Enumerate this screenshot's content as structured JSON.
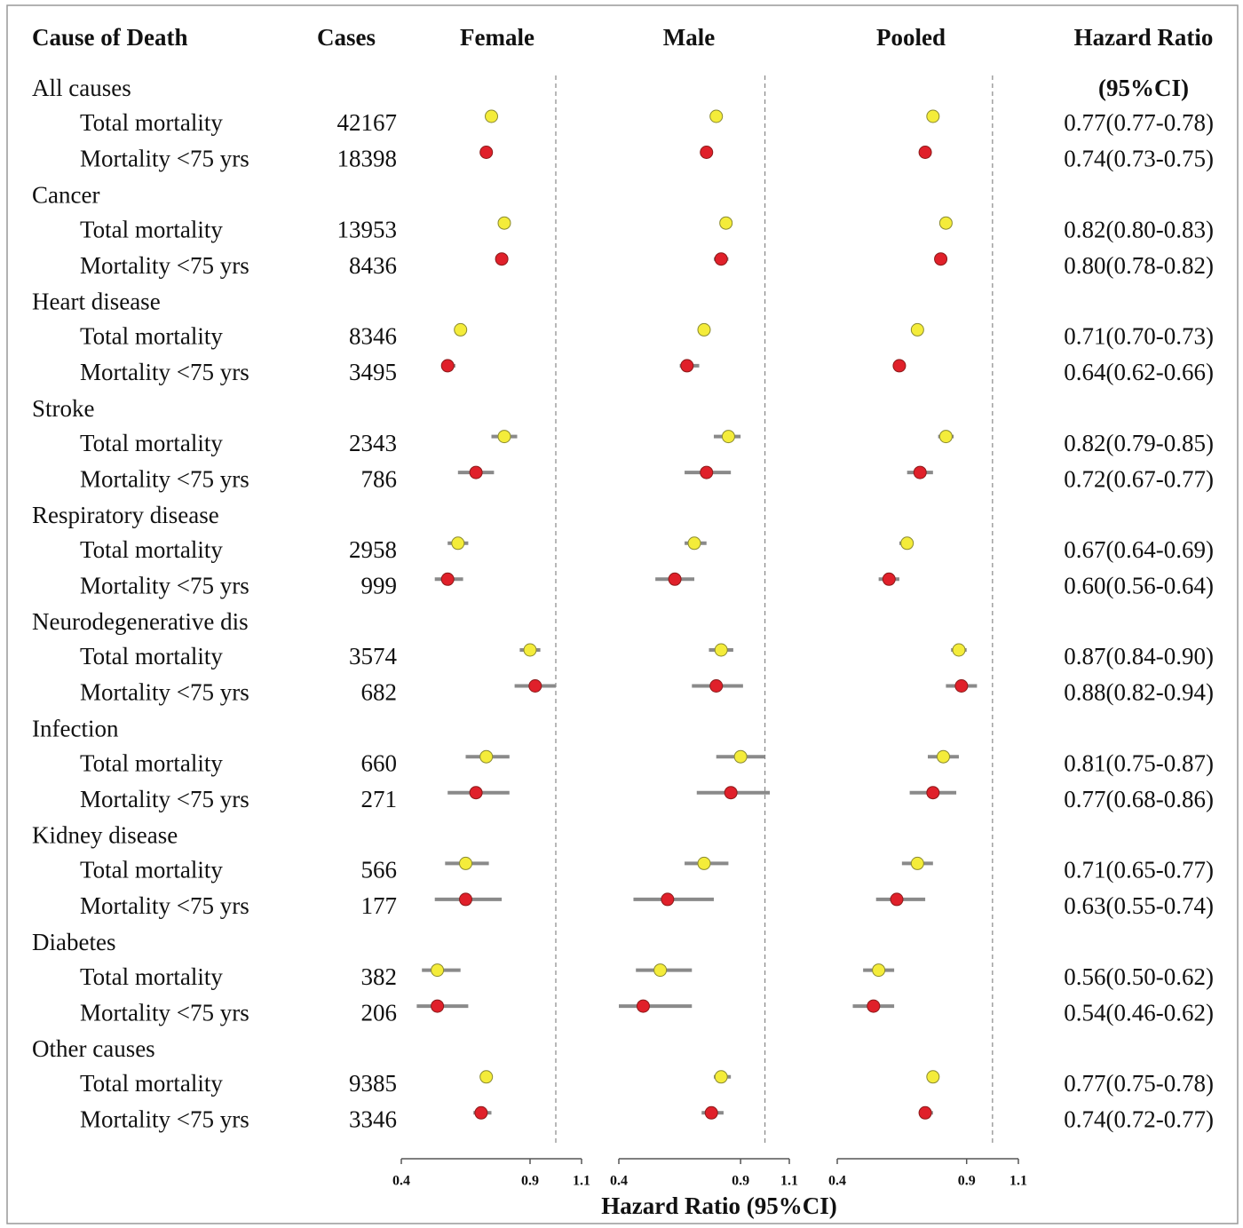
{
  "chart_data": {
    "type": "forest",
    "headers": {
      "cause": "Cause of Death",
      "cases": "Cases",
      "hr": "Hazard Ratio",
      "hr_sub": "(95%CI)"
    },
    "xlabel": "Hazard Ratio (95%CI)",
    "marker_colors": [
      "#f4ec3a",
      "#e0202a"
    ],
    "groups": [
      {
        "name": "All causes",
        "rows": [
          {
            "label": "Total mortality",
            "cases": 42167
          },
          {
            "label": "Mortality <75 yrs",
            "cases": 18398
          }
        ]
      },
      {
        "name": "Cancer",
        "rows": [
          {
            "label": "Total mortality",
            "cases": 13953
          },
          {
            "label": "Mortality <75 yrs",
            "cases": 8436
          }
        ]
      },
      {
        "name": "Heart disease",
        "rows": [
          {
            "label": "Total mortality",
            "cases": 8346
          },
          {
            "label": "Mortality <75 yrs",
            "cases": 3495
          }
        ]
      },
      {
        "name": "Stroke",
        "rows": [
          {
            "label": "Total mortality",
            "cases": 2343
          },
          {
            "label": "Mortality <75 yrs",
            "cases": 786
          }
        ]
      },
      {
        "name": "Respiratory disease",
        "rows": [
          {
            "label": "Total mortality",
            "cases": 2958
          },
          {
            "label": "Mortality <75 yrs",
            "cases": 999
          }
        ]
      },
      {
        "name": "Neurodegenerative dis",
        "rows": [
          {
            "label": "Total mortality",
            "cases": 3574
          },
          {
            "label": "Mortality <75 yrs",
            "cases": 682
          }
        ]
      },
      {
        "name": "Infection",
        "rows": [
          {
            "label": "Total mortality",
            "cases": 660
          },
          {
            "label": "Mortality <75 yrs",
            "cases": 271
          }
        ]
      },
      {
        "name": "Kidney disease",
        "rows": [
          {
            "label": "Total mortality",
            "cases": 566
          },
          {
            "label": "Mortality <75 yrs",
            "cases": 177
          }
        ]
      },
      {
        "name": "Diabetes",
        "rows": [
          {
            "label": "Total mortality",
            "cases": 382
          },
          {
            "label": "Mortality <75 yrs",
            "cases": 206
          }
        ]
      },
      {
        "name": "Other causes",
        "rows": [
          {
            "label": "Total mortality",
            "cases": 9385
          },
          {
            "label": "Mortality <75 yrs",
            "cases": 3346
          }
        ]
      }
    ],
    "panels": [
      {
        "name": "Female",
        "xlim": [
          0.4,
          1.1
        ],
        "xticks": [
          0.4,
          0.9,
          1.1
        ],
        "reference": 1,
        "estimates": [
          0.75,
          0.73,
          0.8,
          0.79,
          0.63,
          0.58,
          0.8,
          0.69,
          0.62,
          0.58,
          0.9,
          0.92,
          0.73,
          0.69,
          0.65,
          0.65,
          0.54,
          0.54,
          0.73,
          0.71
        ],
        "lower": [
          0.74,
          0.72,
          0.79,
          0.78,
          0.62,
          0.56,
          0.75,
          0.62,
          0.58,
          0.53,
          0.86,
          0.84,
          0.65,
          0.58,
          0.57,
          0.53,
          0.48,
          0.46,
          0.72,
          0.68
        ],
        "upper": [
          0.76,
          0.74,
          0.81,
          0.8,
          0.64,
          0.61,
          0.85,
          0.76,
          0.66,
          0.64,
          0.94,
          1.0,
          0.82,
          0.82,
          0.74,
          0.79,
          0.63,
          0.66,
          0.75,
          0.75
        ]
      },
      {
        "name": "Male",
        "xlim": [
          0.4,
          1.1
        ],
        "xticks": [
          0.4,
          0.9,
          1.1
        ],
        "reference": 1,
        "estimates": [
          0.8,
          0.76,
          0.84,
          0.82,
          0.75,
          0.68,
          0.85,
          0.76,
          0.71,
          0.63,
          0.82,
          0.8,
          0.9,
          0.86,
          0.75,
          0.6,
          0.57,
          0.5,
          0.82,
          0.78
        ],
        "lower": [
          0.79,
          0.75,
          0.83,
          0.79,
          0.74,
          0.65,
          0.79,
          0.67,
          0.67,
          0.55,
          0.77,
          0.7,
          0.8,
          0.72,
          0.67,
          0.46,
          0.47,
          0.4,
          0.79,
          0.74
        ],
        "upper": [
          0.81,
          0.77,
          0.85,
          0.85,
          0.76,
          0.73,
          0.9,
          0.86,
          0.76,
          0.71,
          0.87,
          0.91,
          1.0,
          1.02,
          0.85,
          0.79,
          0.7,
          0.7,
          0.86,
          0.83
        ]
      },
      {
        "name": "Pooled",
        "xlim": [
          0.4,
          1.1
        ],
        "xticks": [
          0.4,
          0.9,
          1.1
        ],
        "reference": 1,
        "estimates": [
          0.77,
          0.74,
          0.82,
          0.8,
          0.71,
          0.64,
          0.82,
          0.72,
          0.67,
          0.6,
          0.87,
          0.88,
          0.81,
          0.77,
          0.71,
          0.63,
          0.56,
          0.54,
          0.77,
          0.74
        ],
        "lower": [
          0.77,
          0.73,
          0.8,
          0.78,
          0.7,
          0.62,
          0.79,
          0.67,
          0.64,
          0.56,
          0.84,
          0.82,
          0.75,
          0.68,
          0.65,
          0.55,
          0.5,
          0.46,
          0.75,
          0.72
        ],
        "upper": [
          0.78,
          0.75,
          0.83,
          0.82,
          0.73,
          0.66,
          0.85,
          0.77,
          0.69,
          0.64,
          0.9,
          0.94,
          0.87,
          0.86,
          0.77,
          0.74,
          0.62,
          0.62,
          0.78,
          0.77
        ],
        "value_labels": [
          "0.77(0.77-0.78)",
          "0.74(0.73-0.75)",
          "0.82(0.80-0.83)",
          "0.80(0.78-0.82)",
          "0.71(0.70-0.73)",
          "0.64(0.62-0.66)",
          "0.82(0.79-0.85)",
          "0.72(0.67-0.77)",
          "0.67(0.64-0.69)",
          "0.60(0.56-0.64)",
          "0.87(0.84-0.90)",
          "0.88(0.82-0.94)",
          "0.81(0.75-0.87)",
          "0.77(0.68-0.86)",
          "0.71(0.65-0.77)",
          "0.63(0.55-0.74)",
          "0.56(0.50-0.62)",
          "0.54(0.46-0.62)",
          "0.77(0.75-0.78)",
          "0.74(0.72-0.77)"
        ]
      }
    ]
  }
}
